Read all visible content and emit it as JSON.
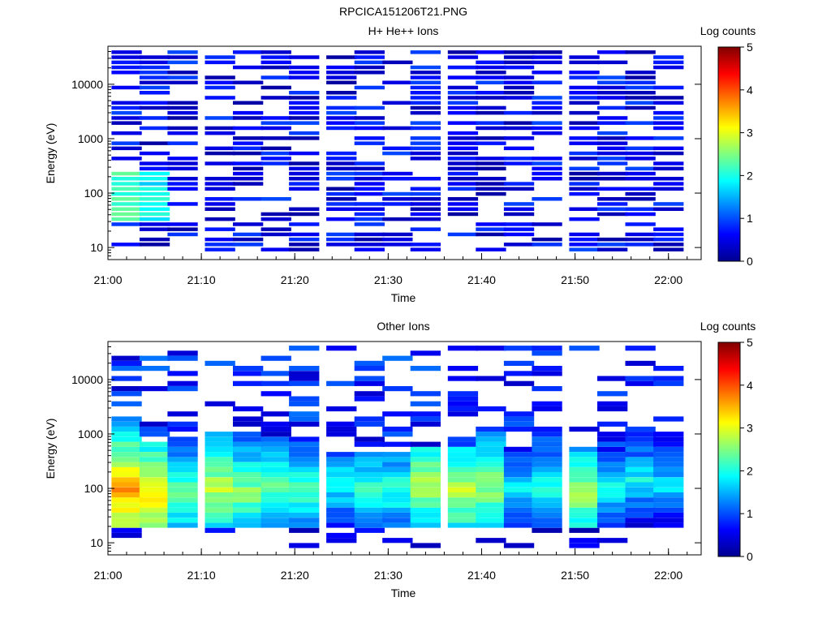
{
  "figure_title": "RPCICA151206T21.PNG",
  "chart_data": [
    {
      "type": "heatmap",
      "title": "H+ He++ Ions",
      "xlabel": "Time",
      "ylabel": "Energy (eV)",
      "yscale": "log",
      "ylim": [
        6,
        50000
      ],
      "x_ticks": [
        "21:00",
        "21:10",
        "21:20",
        "21:30",
        "21:40",
        "21:50",
        "22:00"
      ],
      "y_ticks": [
        "10",
        "100",
        "1000",
        "10000"
      ],
      "colorbar": {
        "label": "Log counts",
        "range": [
          0,
          5
        ],
        "ticks": [
          "0",
          "1",
          "2",
          "3",
          "4",
          "5"
        ]
      },
      "time_bins": [
        "21:02",
        "21:05",
        "21:08",
        "21:12",
        "21:15",
        "21:18",
        "21:21",
        "21:25",
        "21:28",
        "21:31",
        "21:34",
        "21:38",
        "21:41",
        "21:44",
        "21:47",
        "21:51",
        "21:54",
        "21:57",
        "22:00"
      ],
      "profile": {
        "low_energy_peak": [
          1.9,
          1.6,
          0.5,
          0.8,
          0.6,
          0.5,
          0.4,
          0.4,
          0.4,
          0.5,
          0.8,
          0.5,
          0.6,
          0.5,
          0.4,
          0.5,
          0.4,
          0.5,
          0.3
        ],
        "fill_fraction": 0.62
      }
    },
    {
      "type": "heatmap",
      "title": "Other Ions",
      "xlabel": "Time",
      "ylabel": "Energy (eV)",
      "yscale": "log",
      "ylim": [
        6,
        50000
      ],
      "x_ticks": [
        "21:00",
        "21:10",
        "21:20",
        "21:30",
        "21:40",
        "21:50",
        "22:00"
      ],
      "y_ticks": [
        "10",
        "100",
        "1000",
        "10000"
      ],
      "colorbar": {
        "label": "Log counts",
        "range": [
          0,
          5
        ],
        "ticks": [
          "0",
          "1",
          "2",
          "3",
          "4",
          "5"
        ]
      },
      "time_bins": [
        "21:02",
        "21:05",
        "21:08",
        "21:12",
        "21:15",
        "21:18",
        "21:21",
        "21:25",
        "21:28",
        "21:31",
        "21:34",
        "21:38",
        "21:41",
        "21:44",
        "21:47",
        "21:51",
        "21:54",
        "21:57",
        "22:00"
      ],
      "profile": {
        "peak_log_counts": [
          3.6,
          3.4,
          2.5,
          2.9,
          2.6,
          2.4,
          2.3,
          2.0,
          2.2,
          2.2,
          2.8,
          2.9,
          2.7,
          1.8,
          2.1,
          2.8,
          2.0,
          1.9,
          1.8
        ],
        "peak_energy_eV": [
          90,
          70,
          80,
          100,
          90,
          110,
          100,
          120,
          100,
          100,
          120,
          90,
          110,
          100,
          110,
          80,
          100,
          150,
          120
        ],
        "upper_energy_eV": [
          2000,
          700,
          900,
          1000,
          1000,
          900,
          800,
          450,
          450,
          450,
          600,
          600,
          1400,
          600,
          700,
          600,
          500,
          1000,
          1200
        ]
      }
    }
  ]
}
